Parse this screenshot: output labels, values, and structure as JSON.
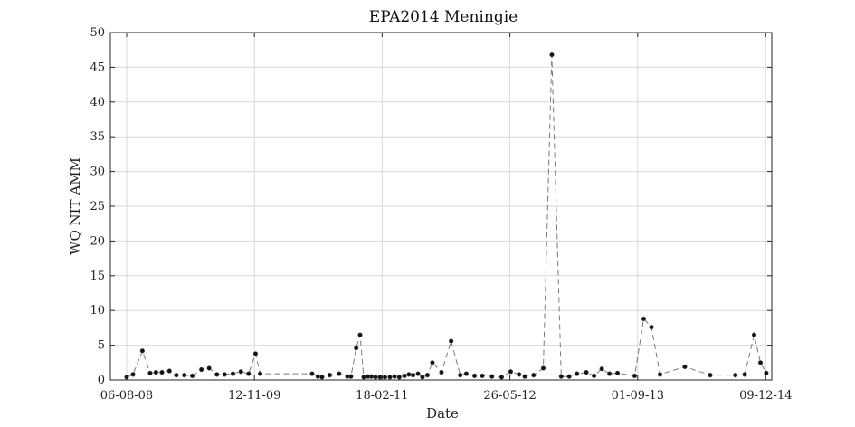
{
  "chart_data": {
    "type": "line",
    "title": "EPA2014 Meningie",
    "xlabel": "Date",
    "ylabel": "WQ NIT AMM",
    "ylim": [
      0,
      50
    ],
    "yticks": [
      0,
      5,
      10,
      15,
      20,
      25,
      30,
      35,
      40,
      45,
      50
    ],
    "xlim": [
      "2008-06-08",
      "2014-12-31"
    ],
    "xtick_dates": [
      "2008-08-06",
      "2009-11-12",
      "2011-02-18",
      "2012-05-26",
      "2013-09-01",
      "2014-12-09"
    ],
    "xtick_labels": [
      "06-08-08",
      "12-11-09",
      "18-02-11",
      "26-05-12",
      "01-09-13",
      "09-12-14"
    ],
    "grid": true,
    "line_style": "dashed",
    "series": [
      {
        "x": [
          "2008-08-06",
          "2008-08-29",
          "2008-10-02",
          "2008-10-30",
          "2008-11-20",
          "2008-12-12",
          "2009-01-08",
          "2009-02-02",
          "2009-03-03",
          "2009-04-01",
          "2009-05-04",
          "2009-06-01",
          "2009-06-29",
          "2009-07-27",
          "2009-08-26",
          "2009-09-24",
          "2009-10-22",
          "2009-11-16",
          "2009-12-03",
          "2010-06-09",
          "2010-06-30",
          "2010-07-15",
          "2010-08-12",
          "2010-09-15",
          "2010-10-15",
          "2010-10-28",
          "2010-11-16",
          "2010-11-30",
          "2010-12-13",
          "2010-12-29",
          "2011-01-10",
          "2011-01-25",
          "2011-02-10",
          "2011-02-28",
          "2011-03-18",
          "2011-04-04",
          "2011-04-21",
          "2011-05-10",
          "2011-05-26",
          "2011-06-10",
          "2011-06-28",
          "2011-07-14",
          "2011-08-01",
          "2011-08-19",
          "2011-09-21",
          "2011-10-26",
          "2011-11-28",
          "2011-12-20",
          "2012-01-19",
          "2012-02-16",
          "2012-03-22",
          "2012-04-26",
          "2012-05-29",
          "2012-06-28",
          "2012-07-19",
          "2012-08-20",
          "2012-09-24",
          "2012-10-25",
          "2012-11-28",
          "2012-12-27",
          "2013-01-24",
          "2013-02-27",
          "2013-03-27",
          "2013-04-24",
          "2013-05-22",
          "2013-06-20",
          "2013-08-21",
          "2013-09-23",
          "2013-10-21",
          "2013-11-21",
          "2014-02-19",
          "2014-05-22",
          "2014-08-21",
          "2014-09-24",
          "2014-10-28",
          "2014-11-20",
          "2014-12-11"
        ],
        "y": [
          0.4,
          0.8,
          4.2,
          1.0,
          1.1,
          1.1,
          1.3,
          0.7,
          0.7,
          0.6,
          1.5,
          1.7,
          0.8,
          0.8,
          0.9,
          1.2,
          0.9,
          3.8,
          0.9,
          0.9,
          0.5,
          0.4,
          0.7,
          0.9,
          0.5,
          0.5,
          4.6,
          6.5,
          0.4,
          0.5,
          0.5,
          0.4,
          0.4,
          0.4,
          0.4,
          0.5,
          0.4,
          0.6,
          0.8,
          0.7,
          0.9,
          0.4,
          0.7,
          2.5,
          1.1,
          5.6,
          0.7,
          0.9,
          0.6,
          0.6,
          0.5,
          0.4,
          1.2,
          0.8,
          0.5,
          0.7,
          1.7,
          46.8,
          0.5,
          0.5,
          0.9,
          1.1,
          0.6,
          1.6,
          0.9,
          1.0,
          0.6,
          8.8,
          7.6,
          0.8,
          1.9,
          0.7,
          0.7,
          0.8,
          6.5,
          2.5,
          1.0
        ]
      }
    ]
  }
}
